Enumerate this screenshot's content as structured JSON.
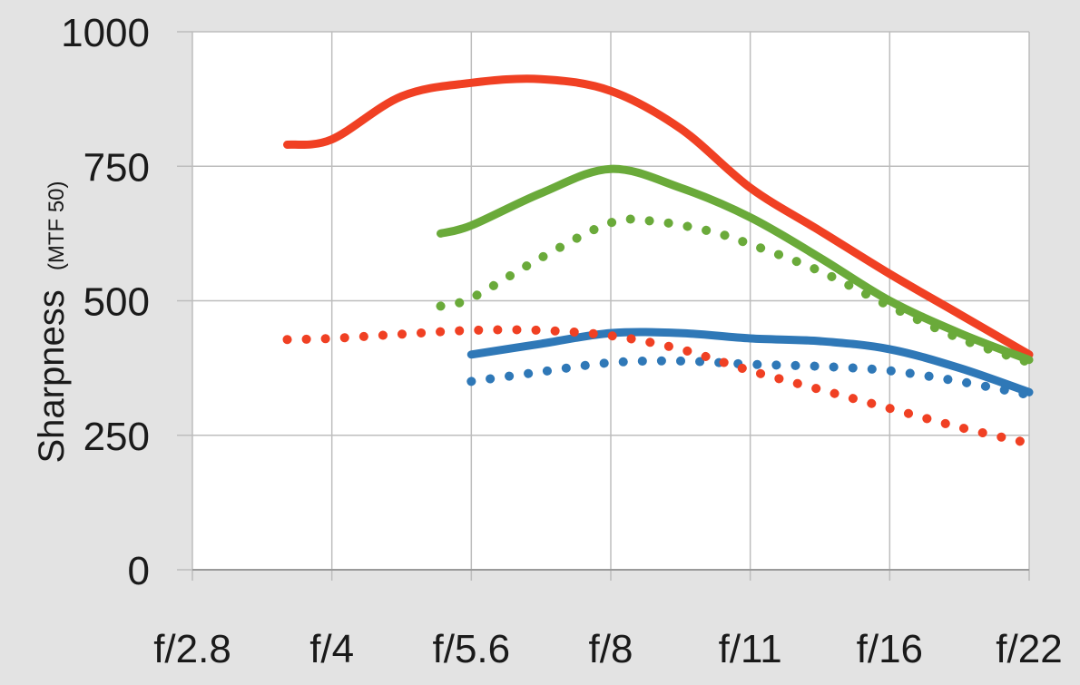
{
  "chart_data": {
    "type": "line",
    "title": "",
    "xlabel": "",
    "ylabel": "Sharpness",
    "ylabel_unit": "(MTF 50)",
    "categories": [
      "f/2.8",
      "f/4",
      "f/5.6",
      "f/8",
      "f/11",
      "f/16",
      "f/22"
    ],
    "ylim": [
      0,
      1000
    ],
    "yticks": [
      "0",
      "250",
      "500",
      "750",
      "1000"
    ],
    "grid": true,
    "legend": "none",
    "colors": {
      "background": "#e3e3e3",
      "plot": "#ffffff",
      "grid": "#bdbdbd",
      "red": "#f04023",
      "green": "#6aaa3a",
      "blue": "#2f78b7"
    },
    "series": [
      {
        "color": "#f04023",
        "style": "solid",
        "points": [
          [
            0.68,
            790
          ],
          [
            1,
            800
          ],
          [
            1.5,
            880
          ],
          [
            2,
            905
          ],
          [
            2.5,
            912
          ],
          [
            3,
            890
          ],
          [
            3.5,
            820
          ],
          [
            4,
            710
          ],
          [
            4.5,
            630
          ],
          [
            5,
            550
          ],
          [
            5.5,
            475
          ],
          [
            6,
            400
          ]
        ]
      },
      {
        "color": "#6aaa3a",
        "style": "solid",
        "points": [
          [
            1.78,
            625
          ],
          [
            2,
            640
          ],
          [
            2.5,
            700
          ],
          [
            3,
            745
          ],
          [
            3.5,
            710
          ],
          [
            4,
            655
          ],
          [
            4.5,
            580
          ],
          [
            5,
            500
          ],
          [
            5.5,
            440
          ],
          [
            6,
            390
          ]
        ]
      },
      {
        "color": "#6aaa3a",
        "style": "dotted",
        "points": [
          [
            1.78,
            490
          ],
          [
            2,
            505
          ],
          [
            2.5,
            580
          ],
          [
            3,
            645
          ],
          [
            3.3,
            648
          ],
          [
            3.7,
            630
          ],
          [
            4,
            605
          ],
          [
            4.5,
            555
          ],
          [
            5,
            490
          ],
          [
            5.5,
            430
          ],
          [
            6,
            385
          ]
        ]
      },
      {
        "color": "#2f78b7",
        "style": "solid",
        "points": [
          [
            2,
            400
          ],
          [
            2.5,
            420
          ],
          [
            3,
            440
          ],
          [
            3.5,
            440
          ],
          [
            4,
            430
          ],
          [
            4.5,
            425
          ],
          [
            5,
            410
          ],
          [
            5.5,
            375
          ],
          [
            6,
            330
          ]
        ]
      },
      {
        "color": "#2f78b7",
        "style": "dotted",
        "points": [
          [
            2,
            350
          ],
          [
            2.5,
            368
          ],
          [
            3,
            385
          ],
          [
            3.5,
            388
          ],
          [
            4,
            382
          ],
          [
            4.5,
            378
          ],
          [
            5,
            370
          ],
          [
            5.5,
            350
          ],
          [
            6,
            325
          ]
        ]
      },
      {
        "color": "#f04023",
        "style": "dotted",
        "points": [
          [
            0.68,
            428
          ],
          [
            1,
            430
          ],
          [
            1.5,
            438
          ],
          [
            2,
            445
          ],
          [
            2.5,
            445
          ],
          [
            3,
            435
          ],
          [
            3.5,
            410
          ],
          [
            4,
            370
          ],
          [
            4.5,
            335
          ],
          [
            5,
            300
          ],
          [
            5.5,
            265
          ],
          [
            6,
            235
          ]
        ]
      }
    ]
  }
}
